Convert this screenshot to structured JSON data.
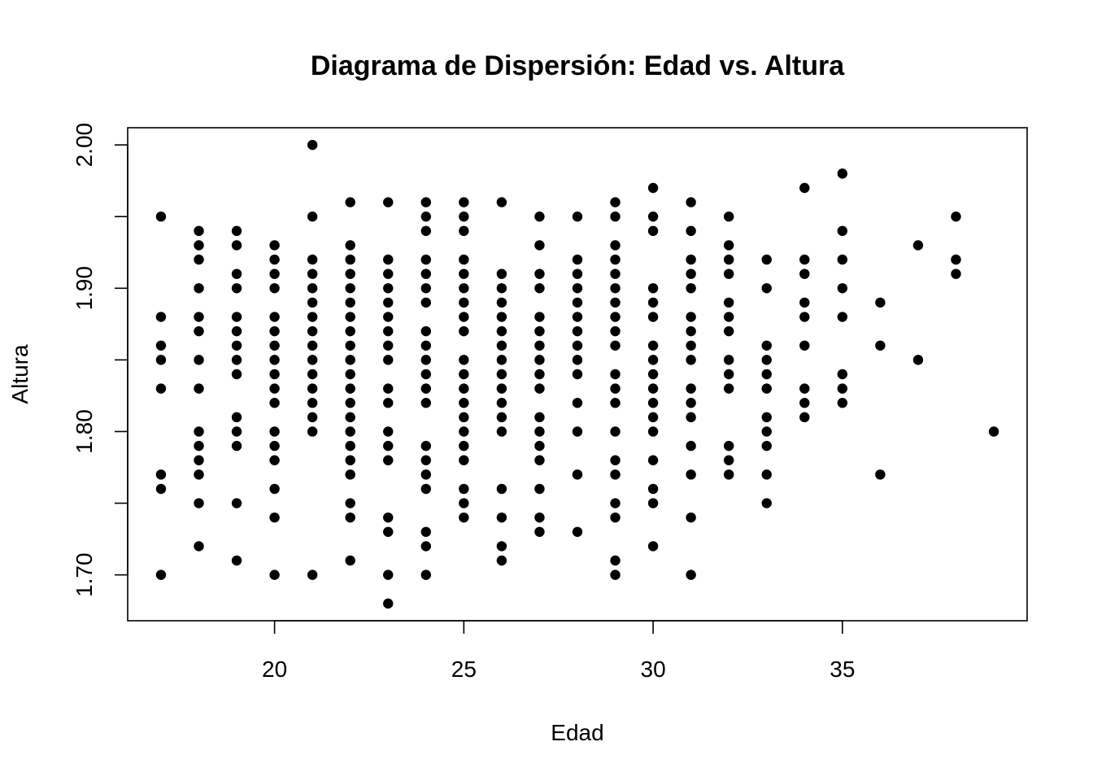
{
  "chart_data": {
    "type": "scatter",
    "title": "Diagrama de Dispersión: Edad vs. Altura",
    "xlabel": "Edad",
    "ylabel": "Altura",
    "xlim": [
      16.12,
      39.88
    ],
    "ylim": [
      1.668,
      2.012
    ],
    "xticks": [
      20,
      25,
      30,
      35
    ],
    "xtick_labels": [
      "20",
      "25",
      "30",
      "35"
    ],
    "yticks": [
      1.7,
      1.75,
      1.8,
      1.85,
      1.9,
      1.95,
      2.0
    ],
    "ytick_labels": [
      "1.70",
      "",
      "1.80",
      "",
      "1.90",
      "",
      "2.00"
    ],
    "grid": false,
    "legend": "none",
    "marker_color": "#000000",
    "columns": [
      {
        "x": 17,
        "y": [
          1.95,
          1.88,
          1.86,
          1.85,
          1.83,
          1.77,
          1.76,
          1.7
        ]
      },
      {
        "x": 18,
        "y": [
          1.94,
          1.93,
          1.92,
          1.9,
          1.88,
          1.87,
          1.85,
          1.83,
          1.8,
          1.79,
          1.78,
          1.77,
          1.75,
          1.72
        ]
      },
      {
        "x": 19,
        "y": [
          1.94,
          1.93,
          1.91,
          1.9,
          1.88,
          1.87,
          1.86,
          1.85,
          1.84,
          1.81,
          1.8,
          1.79,
          1.75,
          1.71
        ]
      },
      {
        "x": 20,
        "y": [
          1.93,
          1.92,
          1.91,
          1.9,
          1.88,
          1.87,
          1.86,
          1.85,
          1.84,
          1.83,
          1.82,
          1.8,
          1.79,
          1.78,
          1.76,
          1.74,
          1.7
        ]
      },
      {
        "x": 21,
        "y": [
          2.0,
          1.95,
          1.92,
          1.91,
          1.9,
          1.89,
          1.88,
          1.87,
          1.86,
          1.85,
          1.84,
          1.83,
          1.82,
          1.81,
          1.8,
          1.7
        ]
      },
      {
        "x": 22,
        "y": [
          1.96,
          1.93,
          1.92,
          1.91,
          1.9,
          1.89,
          1.88,
          1.87,
          1.86,
          1.85,
          1.84,
          1.83,
          1.82,
          1.81,
          1.8,
          1.79,
          1.78,
          1.77,
          1.75,
          1.74,
          1.71
        ]
      },
      {
        "x": 23,
        "y": [
          1.96,
          1.92,
          1.91,
          1.9,
          1.89,
          1.88,
          1.87,
          1.86,
          1.85,
          1.83,
          1.82,
          1.8,
          1.79,
          1.78,
          1.74,
          1.73,
          1.7,
          1.68
        ]
      },
      {
        "x": 24,
        "y": [
          1.96,
          1.95,
          1.94,
          1.92,
          1.91,
          1.9,
          1.89,
          1.87,
          1.86,
          1.85,
          1.84,
          1.83,
          1.82,
          1.79,
          1.78,
          1.77,
          1.76,
          1.73,
          1.72,
          1.7
        ]
      },
      {
        "x": 25,
        "y": [
          1.96,
          1.95,
          1.94,
          1.92,
          1.91,
          1.9,
          1.89,
          1.88,
          1.87,
          1.85,
          1.84,
          1.83,
          1.82,
          1.81,
          1.8,
          1.79,
          1.78,
          1.76,
          1.75,
          1.74
        ]
      },
      {
        "x": 26,
        "y": [
          1.96,
          1.91,
          1.9,
          1.89,
          1.88,
          1.87,
          1.86,
          1.85,
          1.84,
          1.83,
          1.82,
          1.81,
          1.8,
          1.76,
          1.74,
          1.72,
          1.71
        ]
      },
      {
        "x": 27,
        "y": [
          1.95,
          1.93,
          1.91,
          1.9,
          1.88,
          1.87,
          1.86,
          1.85,
          1.84,
          1.83,
          1.81,
          1.8,
          1.79,
          1.78,
          1.76,
          1.74,
          1.73
        ]
      },
      {
        "x": 28,
        "y": [
          1.95,
          1.92,
          1.91,
          1.9,
          1.89,
          1.88,
          1.87,
          1.86,
          1.85,
          1.84,
          1.82,
          1.8,
          1.77,
          1.73
        ]
      },
      {
        "x": 29,
        "y": [
          1.96,
          1.95,
          1.93,
          1.92,
          1.91,
          1.9,
          1.89,
          1.88,
          1.87,
          1.86,
          1.84,
          1.83,
          1.82,
          1.8,
          1.78,
          1.77,
          1.75,
          1.74,
          1.71,
          1.7
        ]
      },
      {
        "x": 30,
        "y": [
          1.97,
          1.95,
          1.94,
          1.9,
          1.89,
          1.88,
          1.86,
          1.85,
          1.84,
          1.83,
          1.82,
          1.81,
          1.8,
          1.78,
          1.76,
          1.75,
          1.72
        ]
      },
      {
        "x": 31,
        "y": [
          1.96,
          1.94,
          1.92,
          1.91,
          1.9,
          1.88,
          1.87,
          1.86,
          1.85,
          1.83,
          1.82,
          1.81,
          1.79,
          1.77,
          1.74,
          1.7
        ]
      },
      {
        "x": 32,
        "y": [
          1.95,
          1.93,
          1.92,
          1.91,
          1.89,
          1.88,
          1.87,
          1.85,
          1.84,
          1.83,
          1.79,
          1.78,
          1.77
        ]
      },
      {
        "x": 33,
        "y": [
          1.92,
          1.9,
          1.86,
          1.85,
          1.84,
          1.83,
          1.81,
          1.8,
          1.79,
          1.77,
          1.75
        ]
      },
      {
        "x": 34,
        "y": [
          1.97,
          1.92,
          1.91,
          1.89,
          1.88,
          1.86,
          1.83,
          1.82,
          1.81
        ]
      },
      {
        "x": 35,
        "y": [
          1.98,
          1.94,
          1.92,
          1.9,
          1.88,
          1.84,
          1.83,
          1.82
        ]
      },
      {
        "x": 36,
        "y": [
          1.89,
          1.86,
          1.77
        ]
      },
      {
        "x": 37,
        "y": [
          1.93,
          1.85
        ]
      },
      {
        "x": 38,
        "y": [
          1.95,
          1.92,
          1.91
        ]
      },
      {
        "x": 39,
        "y": [
          1.8
        ]
      }
    ]
  }
}
